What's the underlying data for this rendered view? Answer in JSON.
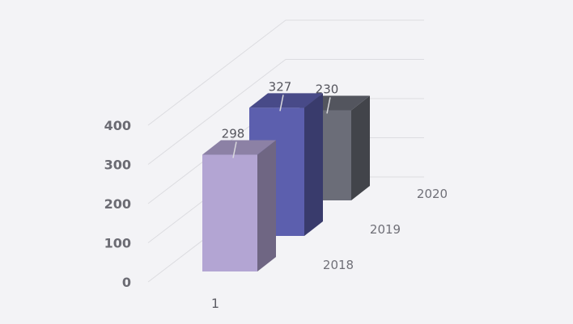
{
  "chart_data": {
    "type": "bar",
    "title": "",
    "xlabel": "",
    "ylabel": "",
    "categories": [
      "1"
    ],
    "series": [
      {
        "name": "2018",
        "values": [
          298
        ],
        "color": "#b3a5d3"
      },
      {
        "name": "2019",
        "values": [
          327
        ],
        "color": "#5c5fae"
      },
      {
        "name": "2020",
        "values": [
          230
        ],
        "color": "#6b6d78"
      }
    ],
    "ylim": [
      0,
      400
    ],
    "yticks": [
      "0",
      "100",
      "200",
      "300",
      "400"
    ],
    "grid": true,
    "legend": "none"
  }
}
